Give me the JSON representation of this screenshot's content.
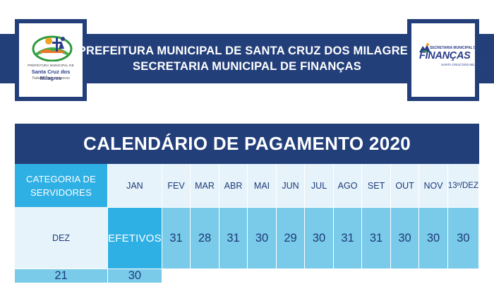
{
  "header": {
    "line1": "PREFEITURA MUNICIPAL DE SANTA CRUZ DOS MILAGRES",
    "line2": "SECRETARIA MUNICIPAL DE FINANÇAS"
  },
  "left_logo": {
    "prefix": "PREFEITURA MUNICIPAL DE",
    "name": "Santa Cruz dos Milagres",
    "tagline": "Trabalho pelo progresso"
  },
  "right_logo": {
    "line1": "SECRETARIA MUNICIPAL DE",
    "line2": "FINANÇAS",
    "line3": "SANTA CRUZ DOS MILAGRES"
  },
  "calendar": {
    "title": "CALENDÁRIO DE PAGAMENTO 2020",
    "category_header_line1": "CATEGORIA DE",
    "category_header_line2": "SERVIDORES",
    "months": [
      "JAN",
      "FEV",
      "MAR",
      "ABR",
      "MAI",
      "JUN",
      "JUL",
      "AGO",
      "SET",
      "OUT",
      "NOV",
      "13º/DEZ",
      "DEZ"
    ],
    "rows": [
      {
        "category": "EFETIVOS",
        "days": [
          "31",
          "28",
          "31",
          "30",
          "29",
          "30",
          "31",
          "31",
          "30",
          "30",
          "30",
          "21",
          "30"
        ]
      }
    ]
  },
  "colors": {
    "navy": "#233f7a",
    "cyan": "#2fb0e4",
    "light_blue": "#79cbe9",
    "pale_blue": "#e6f3fb"
  }
}
